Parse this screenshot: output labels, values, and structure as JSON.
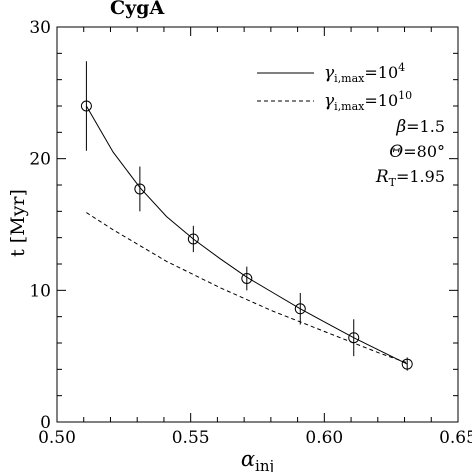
{
  "chart_data": {
    "type": "line",
    "title": "CygA",
    "xlabel": {
      "main": "α",
      "sub": "inj"
    },
    "ylabel": "t  [Myr]",
    "xlim": [
      0.5,
      0.65
    ],
    "ylim": [
      0,
      30
    ],
    "xticks": [
      {
        "value": 0.5,
        "label": "0.50"
      },
      {
        "value": 0.55,
        "label": "0.55"
      },
      {
        "value": 0.6,
        "label": "0.60"
      },
      {
        "value": 0.65,
        "label": "0.65"
      }
    ],
    "yticks": [
      {
        "value": 0,
        "label": "0"
      },
      {
        "value": 10,
        "label": "10"
      },
      {
        "value": 20,
        "label": "20"
      },
      {
        "value": 30,
        "label": "30"
      }
    ],
    "series": [
      {
        "style": "solid",
        "x": [
          0.511,
          0.521,
          0.531,
          0.541,
          0.551,
          0.561,
          0.571,
          0.581,
          0.591,
          0.601,
          0.611,
          0.621,
          0.631
        ],
        "y": [
          24.0,
          20.5,
          17.8,
          15.6,
          13.9,
          12.4,
          11.0,
          9.8,
          8.6,
          7.5,
          6.4,
          5.4,
          4.4
        ]
      },
      {
        "style": "dashed",
        "x": [
          0.511,
          0.521,
          0.531,
          0.541,
          0.551,
          0.561,
          0.571,
          0.581,
          0.591,
          0.601,
          0.611,
          0.621,
          0.631
        ],
        "y": [
          15.9,
          14.6,
          13.4,
          12.2,
          11.2,
          10.2,
          9.3,
          8.4,
          7.6,
          6.8,
          6.0,
          5.2,
          4.5
        ]
      }
    ],
    "points": [
      {
        "x": 0.511,
        "y": 24.0,
        "err": 3.4
      },
      {
        "x": 0.531,
        "y": 17.7,
        "err": 1.7
      },
      {
        "x": 0.551,
        "y": 13.9,
        "err": 1.0
      },
      {
        "x": 0.571,
        "y": 10.9,
        "err": 0.9
      },
      {
        "x": 0.591,
        "y": 8.6,
        "err": 1.2
      },
      {
        "x": 0.611,
        "y": 6.4,
        "err": 1.4
      },
      {
        "x": 0.631,
        "y": 4.4,
        "err": 0.5
      }
    ],
    "legend": {
      "placement": "top-right",
      "entries": [
        {
          "style": "solid",
          "sym": "γ",
          "sub": "i,max",
          "text": "=10",
          "sup": "4"
        },
        {
          "style": "dashed",
          "sym": "γ",
          "sub": "i,max",
          "text": "=10",
          "sup": "10"
        }
      ],
      "params": [
        {
          "sym": "β",
          "text": "=1.5"
        },
        {
          "sym": "Θ",
          "text": "=80°"
        },
        {
          "sym": "R",
          "sub": "T",
          "text": "=1.95"
        }
      ]
    },
    "grid": false
  }
}
